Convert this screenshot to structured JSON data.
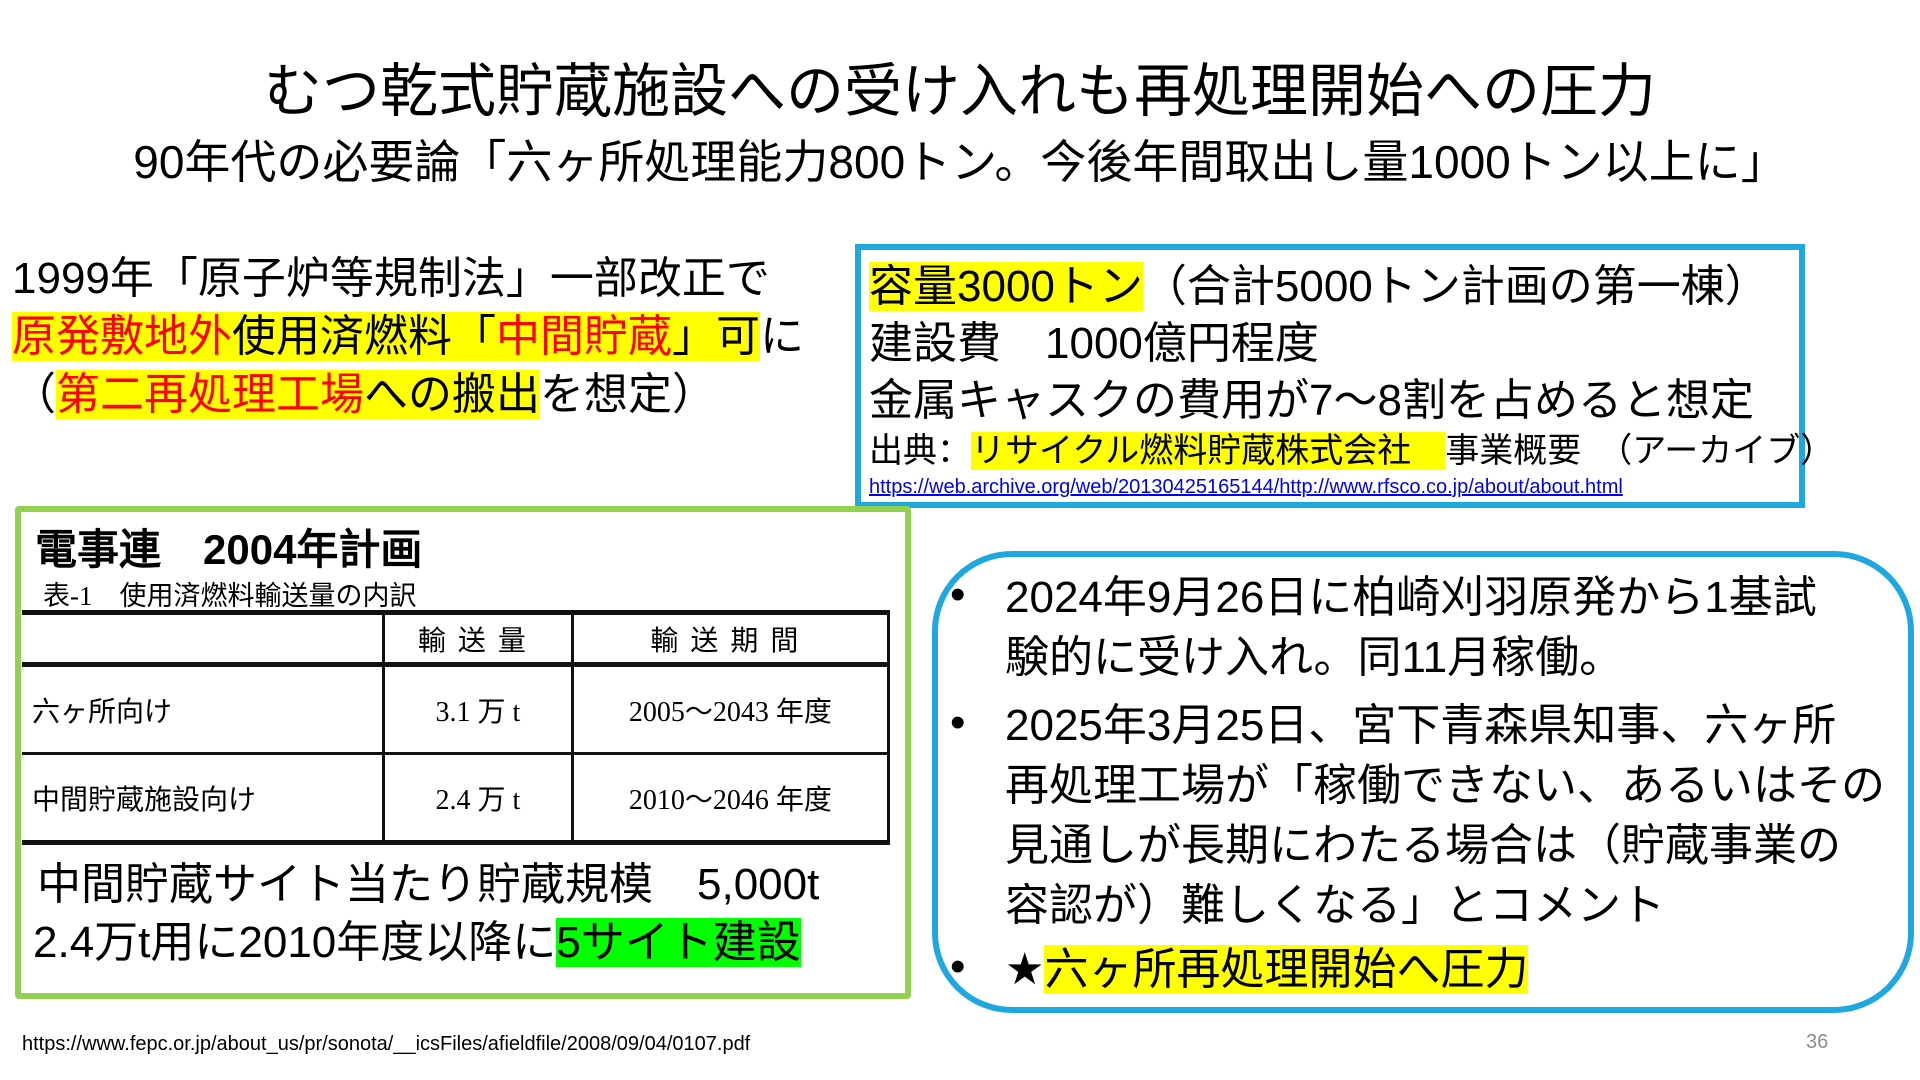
{
  "title": "むつ乾式貯蔵施設への受け入れも再処理開始への圧力",
  "subtitle": "90年代の必要論「六ヶ所処理能力800トン。今後年間取出し量1000トン以上に」",
  "left": {
    "line1": "1999年「原子炉等規制法」一部改正で",
    "line2": {
      "a": "原発敷地外",
      "b": "使用済燃料「",
      "c": "中間貯蔵",
      "d": "」可",
      "e": "に"
    },
    "line3": {
      "a": "（",
      "b": "第二再処理工場",
      "c": "への搬出",
      "d": "を想定）"
    }
  },
  "bluebox": {
    "line1": {
      "hl": "容量3000トン",
      "rest": "（合計5000トン計画の第一棟）"
    },
    "line2": "建設費　1000億円程度",
    "line3": "金属キャスクの費用が7～8割を占めると想定",
    "source": {
      "label": "出典：",
      "hl": "リサイクル燃料貯蔵株式会社　",
      "rest": "事業概要　（アーカイブ）"
    },
    "url": "https://web.archive.org/web/20130425165144/http://www.rfsco.co.jp/about/about.html"
  },
  "greenbox": {
    "heading": "電事連　2004年計画",
    "caption": "表-1　使用済燃料輸送量の内訳",
    "table": {
      "headers": [
        "",
        "輸送量",
        "輸送期間"
      ],
      "rows": [
        [
          "六ヶ所向け",
          "3.1 万 t",
          "2005～2043 年度"
        ],
        [
          "中間貯蔵施設向け",
          "2.4 万 t",
          "2010～2046 年度"
        ]
      ]
    },
    "note1": "中間貯蔵サイト当たり貯蔵規模　5,000t",
    "note2": {
      "a": "2.4万t用に2010年度以降に",
      "hl": "5サイト建設"
    }
  },
  "bullets": {
    "b1": [
      "2024年9月26日に柏崎刈羽原発から1基試",
      "験的に受け入れ。同11月稼働。"
    ],
    "b2": [
      "2025年3月25日、宮下青森県知事、六ヶ所",
      "再処理工場が「稼働できない、あるいはその",
      "見通しが長期にわたる場合は（貯蔵事業の",
      "容認が）難しくなる」とコメント"
    ],
    "b3": {
      "star": "★",
      "hl": "六ヶ所再処理開始へ圧力"
    }
  },
  "footer_url": "https://www.fepc.or.jp/about_us/pr/sonota/__icsFiles/afieldfile/2008/09/04/0107.pdf",
  "page_number": "36",
  "colors": {
    "highlight": "#ffff00",
    "red_text": "#ff0000",
    "green_highlight": "#00ff00",
    "blue_border": "#1ea7e0",
    "green_border": "#92d050"
  }
}
